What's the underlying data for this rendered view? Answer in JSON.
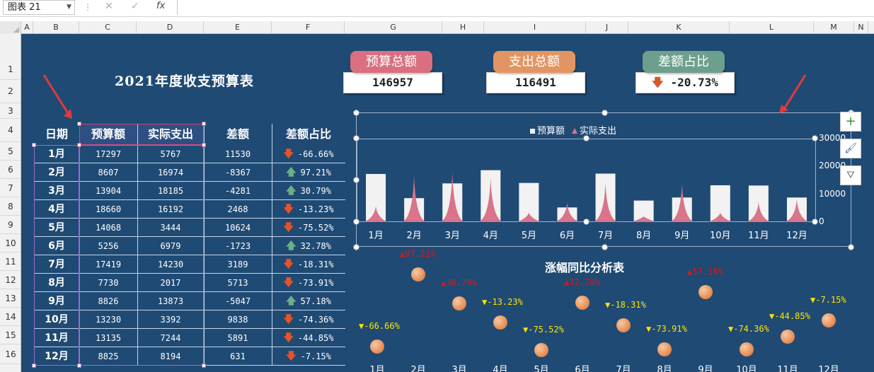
{
  "formula_bar": {
    "name_box": "图表 21",
    "cancel": "✕",
    "confirm": "✓",
    "fx": "fx",
    "formula": ""
  },
  "columns": [
    "A",
    "B",
    "C",
    "D",
    "E",
    "F",
    "G",
    "H",
    "I",
    "J",
    "K",
    "L",
    "M",
    "N"
  ],
  "rows": [
    "1",
    "2",
    "3",
    "4",
    "5",
    "6",
    "7",
    "8",
    "9",
    "10",
    "11",
    "12",
    "13",
    "14",
    "15",
    "16"
  ],
  "sheet_title": "2021年度收支预算表",
  "cards": {
    "budget": {
      "label": "预算总额",
      "value": "146957",
      "color": "#d96f80"
    },
    "expense": {
      "label": "支出总额",
      "value": "116491",
      "color": "#e29563"
    },
    "ratio": {
      "label": "差额占比",
      "value": "-20.73%",
      "arrow": "🡇",
      "color": "#6e9f8c"
    }
  },
  "table": {
    "headers": [
      "日期",
      "预算额",
      "实际支出",
      "差额",
      "差额占比"
    ],
    "rows": [
      {
        "month": "1月",
        "budget": "17297",
        "actual": "5767",
        "diff": "11530",
        "ratio": "-66.66%",
        "dir": "down"
      },
      {
        "month": "2月",
        "budget": "8607",
        "actual": "16974",
        "diff": "-8367",
        "ratio": "97.21%",
        "dir": "up"
      },
      {
        "month": "3月",
        "budget": "13904",
        "actual": "18185",
        "diff": "-4281",
        "ratio": "30.79%",
        "dir": "up"
      },
      {
        "month": "4月",
        "budget": "18660",
        "actual": "16192",
        "diff": "2468",
        "ratio": "-13.23%",
        "dir": "down"
      },
      {
        "month": "5月",
        "budget": "14068",
        "actual": "3444",
        "diff": "10624",
        "ratio": "-75.52%",
        "dir": "down"
      },
      {
        "month": "6月",
        "budget": "5256",
        "actual": "6979",
        "diff": "-1723",
        "ratio": "32.78%",
        "dir": "up"
      },
      {
        "month": "7月",
        "budget": "17419",
        "actual": "14230",
        "diff": "3189",
        "ratio": "-18.31%",
        "dir": "down"
      },
      {
        "month": "8月",
        "budget": "7730",
        "actual": "2017",
        "diff": "5713",
        "ratio": "-73.91%",
        "dir": "down"
      },
      {
        "month": "9月",
        "budget": "8826",
        "actual": "13873",
        "diff": "-5047",
        "ratio": "57.18%",
        "dir": "up"
      },
      {
        "month": "10月",
        "budget": "13230",
        "actual": "3392",
        "diff": "9838",
        "ratio": "-74.36%",
        "dir": "down"
      },
      {
        "month": "11月",
        "budget": "13135",
        "actual": "7244",
        "diff": "5891",
        "ratio": "-44.85%",
        "dir": "down"
      },
      {
        "month": "12月",
        "budget": "8825",
        "actual": "8194",
        "diff": "631",
        "ratio": "-7.15%",
        "dir": "down"
      }
    ],
    "arrow_up": "🡅",
    "arrow_down": "🡇"
  },
  "chart_data": [
    {
      "type": "bar",
      "title": "",
      "categories": [
        "1月",
        "2月",
        "3月",
        "4月",
        "5月",
        "6月",
        "7月",
        "8月",
        "9月",
        "10月",
        "11月",
        "12月"
      ],
      "series": [
        {
          "name": "预算额",
          "style": "bar",
          "color": "#f2f2f2",
          "values": [
            17297,
            8607,
            13904,
            18660,
            14068,
            5256,
            17419,
            7730,
            8826,
            13230,
            13135,
            8825
          ]
        },
        {
          "name": "实际支出",
          "style": "spike",
          "color": "#d9748a",
          "values": [
            5767,
            16974,
            18185,
            16192,
            3444,
            6979,
            14230,
            2017,
            13873,
            3392,
            7244,
            8194
          ]
        }
      ],
      "y_ticks": [
        "0",
        "10000",
        "20000",
        "30000"
      ],
      "ylim": [
        0,
        30000
      ],
      "legend": "top",
      "axis_side": "right"
    },
    {
      "type": "scatter",
      "title": "涨幅同比分析表",
      "categories": [
        "1月",
        "2月",
        "3月",
        "4月",
        "5月",
        "6月",
        "7月",
        "8月",
        "9月",
        "10月",
        "11月",
        "12月"
      ],
      "values": [
        -66.66,
        97.21,
        30.79,
        -13.23,
        -75.52,
        32.78,
        -18.31,
        -73.91,
        57.18,
        -74.36,
        -44.85,
        -7.15
      ],
      "labels": [
        "▼-66.66%",
        "▲97.21%",
        "▲30.79%",
        "▼-13.23%",
        "▼-75.52%",
        "▲32.78%",
        "▼-18.31%",
        "▼-73.91%",
        "▲57.18%",
        "▼-74.36%",
        "▼-44.85%",
        "▼-7.15%"
      ],
      "up_color": "#d41a1a",
      "down_color": "#ffe400"
    }
  ],
  "side_buttons": {
    "add": "+",
    "style": "🖌",
    "filter": "⛛"
  }
}
